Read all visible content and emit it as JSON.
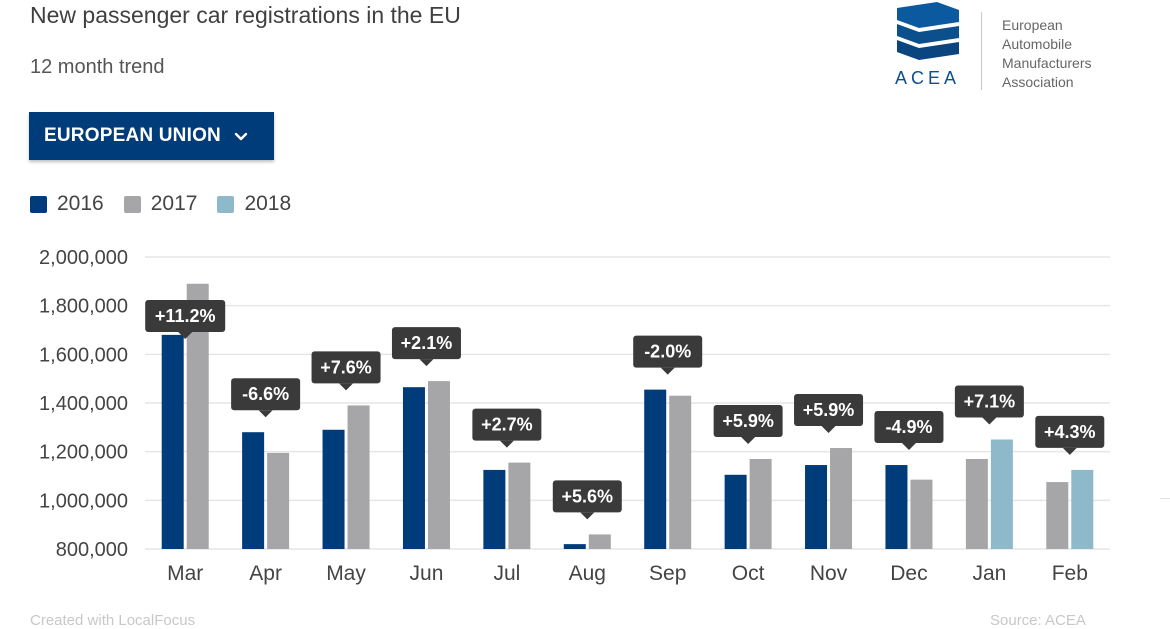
{
  "header": {
    "title": "New passenger car registrations in the EU",
    "subtitle": "12 month trend"
  },
  "dropdown": {
    "label": "EUROPEAN UNION",
    "icon": "chevron-down-icon"
  },
  "logo": {
    "acronym": "ACEA",
    "name_lines": [
      "European",
      "Automobile",
      "Manufacturers",
      "Association"
    ]
  },
  "footer": {
    "created_with": "Created with LocalFocus",
    "source": "Source: ACEA"
  },
  "colors": {
    "2016": "#003b7a",
    "2017": "#a6a6a8",
    "2018": "#8eb9cb",
    "label_bg": "#3a3a3a",
    "brand": "#003b7a"
  },
  "chart_data": {
    "type": "bar",
    "categories": [
      "Mar",
      "Apr",
      "May",
      "Jun",
      "Jul",
      "Aug",
      "Sep",
      "Oct",
      "Nov",
      "Dec",
      "Jan",
      "Feb"
    ],
    "series": [
      {
        "name": "2016",
        "values": [
          1680000,
          1280000,
          1290000,
          1465000,
          1125000,
          820000,
          1455000,
          1105000,
          1145000,
          1145000,
          null,
          null
        ]
      },
      {
        "name": "2017",
        "values": [
          1890000,
          1195000,
          1390000,
          1490000,
          1155000,
          860000,
          1430000,
          1170000,
          1215000,
          1085000,
          1170000,
          1075000
        ]
      },
      {
        "name": "2018",
        "values": [
          null,
          null,
          null,
          null,
          null,
          null,
          null,
          null,
          null,
          null,
          1250000,
          1125000
        ]
      }
    ],
    "change_labels": [
      "+11.2%",
      "-6.6%",
      "+7.6%",
      "+2.1%",
      "+2.7%",
      "+5.6%",
      "-2.0%",
      "+5.9%",
      "+5.9%",
      "-4.9%",
      "+7.1%",
      "+4.3%"
    ],
    "y_ticks": [
      "800,000",
      "1,000,000",
      "1,200,000",
      "1,400,000",
      "1,600,000",
      "1,800,000",
      "2,000,000"
    ],
    "ylim": [
      800000,
      2000000
    ],
    "grid": true,
    "legend_position": "top-left"
  }
}
